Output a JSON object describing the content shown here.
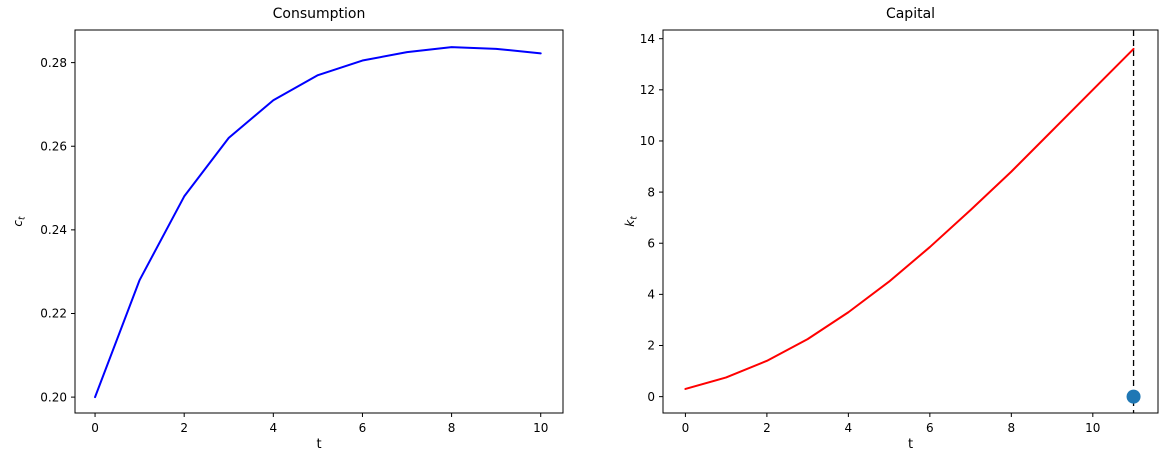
{
  "figure": {
    "background": "#ffffff",
    "text_color": "#000000"
  },
  "chart_data": [
    {
      "type": "line",
      "name": "consumption",
      "title": "Consumption",
      "xlabel": "t",
      "ylabel": {
        "main": "c",
        "sub": "t"
      },
      "x": [
        0,
        1,
        2,
        3,
        4,
        5,
        6,
        7,
        8,
        9,
        10
      ],
      "series": [
        {
          "name": "c_t",
          "color": "#0000ff",
          "values": [
            0.2,
            0.228,
            0.248,
            0.262,
            0.271,
            0.277,
            0.2805,
            0.2825,
            0.2837,
            0.2833,
            0.2822
          ]
        }
      ],
      "xlim": [
        -0.45,
        10.5
      ],
      "ylim": [
        0.1962,
        0.2878
      ],
      "xticks": [
        0,
        2,
        4,
        6,
        8,
        10
      ],
      "xtick_labels": [
        "0",
        "2",
        "4",
        "6",
        "8",
        "10"
      ],
      "yticks": [
        0.2,
        0.22,
        0.24,
        0.26,
        0.28
      ],
      "ytick_labels": [
        "0.20",
        "0.22",
        "0.24",
        "0.26",
        "0.28"
      ],
      "grid": false,
      "legend": null
    },
    {
      "type": "line",
      "name": "capital",
      "title": "Capital",
      "xlabel": "t",
      "ylabel": {
        "main": "k",
        "sub": "t"
      },
      "x": [
        0,
        1,
        2,
        3,
        4,
        5,
        6,
        7,
        8,
        9,
        10,
        11
      ],
      "series": [
        {
          "name": "k_t",
          "color": "#ff0000",
          "values": [
            0.3,
            0.75,
            1.4,
            2.25,
            3.3,
            4.5,
            5.85,
            7.3,
            8.8,
            10.4,
            12.0,
            13.6
          ]
        }
      ],
      "xlim": [
        -0.55,
        11.6
      ],
      "ylim": [
        -0.64,
        14.34
      ],
      "xticks": [
        0,
        2,
        4,
        6,
        8,
        10
      ],
      "xtick_labels": [
        "0",
        "2",
        "4",
        "6",
        "8",
        "10"
      ],
      "yticks": [
        0,
        2,
        4,
        6,
        8,
        10,
        12,
        14
      ],
      "ytick_labels": [
        "0",
        "2",
        "4",
        "6",
        "8",
        "10",
        "12",
        "14"
      ],
      "grid": false,
      "legend": null,
      "annotations": {
        "vline": {
          "x": 11,
          "color": "#000000",
          "style": "dashed"
        },
        "marker": {
          "x": 11,
          "y": 0,
          "color": "#1f77b4",
          "radius": 7
        }
      }
    }
  ]
}
